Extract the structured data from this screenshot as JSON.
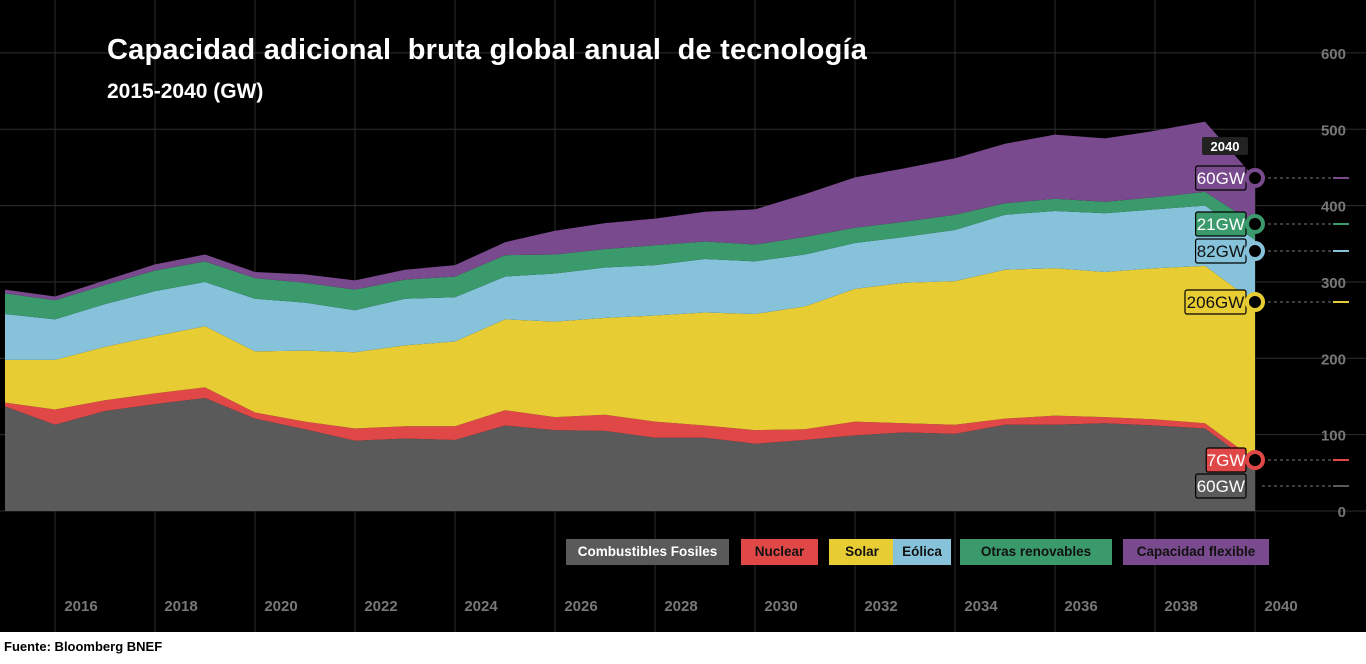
{
  "title": "Capacidad adicional  bruta global anual  de tecnología",
  "subtitle": "2015-2040 (GW)",
  "source": "Fuente: Bloomberg BNEF",
  "colors": {
    "background": "#000000",
    "grid": "#2e2e2e",
    "axis_text": "#777777"
  },
  "legend": {
    "items": [
      {
        "label": "Combustibles Fosiles",
        "color": "#5a5a5a"
      },
      {
        "label": "Nuclear",
        "color": "#e04848"
      },
      {
        "label": "Solar",
        "color": "#e8cc33"
      },
      {
        "label": "Eólica",
        "color": "#86c3db"
      },
      {
        "label": "Otras renovables",
        "color": "#3a9a6c"
      },
      {
        "label": "Capacidad flexible",
        "color": "#7a4a8e"
      }
    ]
  },
  "end_labels": {
    "year": "2040",
    "flexible": "60GW",
    "other_renewables": "21GW",
    "wind": "82GW",
    "solar": "206GW",
    "nuclear": "7GW",
    "fossil": "60GW"
  },
  "chart_data": {
    "type": "area",
    "stacked": true,
    "title": "Capacidad adicional  bruta global anual  de tecnología",
    "subtitle": "2015-2040 (GW)",
    "xlabel": "",
    "ylabel": "",
    "x": [
      2015,
      2016,
      2017,
      2018,
      2019,
      2020,
      2021,
      2022,
      2023,
      2024,
      2025,
      2026,
      2027,
      2028,
      2029,
      2030,
      2031,
      2032,
      2033,
      2034,
      2035,
      2036,
      2037,
      2038,
      2039,
      2040
    ],
    "x_ticks": [
      "2016",
      "2018",
      "2020",
      "2022",
      "2024",
      "2026",
      "2028",
      "2030",
      "2032",
      "2034",
      "2036",
      "2038",
      "2040"
    ],
    "y_ticks": [
      "0",
      "100",
      "200",
      "300",
      "400",
      "500",
      "600"
    ],
    "ylim": [
      0,
      600
    ],
    "y_axis_side": "right",
    "grid": true,
    "legend_position": "bottom-right",
    "series": [
      {
        "name": "Combustibles Fosiles",
        "color": "#5a5a5a",
        "values": [
          137,
          113,
          131,
          140,
          148,
          121,
          107,
          92,
          95,
          93,
          112,
          106,
          105,
          96,
          96,
          88,
          93,
          99,
          103,
          101,
          113,
          113,
          115,
          112,
          108,
          60
        ]
      },
      {
        "name": "Nuclear",
        "color": "#e04848",
        "values": [
          5,
          20,
          14,
          14,
          14,
          8,
          10,
          16,
          16,
          18,
          20,
          17,
          21,
          21,
          16,
          18,
          14,
          18,
          12,
          12,
          8,
          12,
          8,
          8,
          7,
          7
        ]
      },
      {
        "name": "Solar",
        "color": "#e8cc33",
        "values": [
          56,
          65,
          70,
          75,
          80,
          80,
          93,
          100,
          106,
          111,
          119,
          125,
          127,
          139,
          148,
          152,
          161,
          174,
          184,
          188,
          195,
          193,
          190,
          198,
          206,
          206
        ]
      },
      {
        "name": "Eólica",
        "color": "#86c3db",
        "values": [
          60,
          53,
          56,
          59,
          58,
          69,
          63,
          55,
          61,
          58,
          56,
          63,
          66,
          66,
          70,
          69,
          68,
          60,
          60,
          67,
          72,
          75,
          77,
          77,
          79,
          82
        ]
      },
      {
        "name": "Otras renovables",
        "color": "#3a9a6c",
        "values": [
          27,
          25,
          25,
          27,
          27,
          27,
          26,
          27,
          25,
          27,
          28,
          25,
          24,
          26,
          23,
          22,
          23,
          20,
          20,
          20,
          15,
          16,
          15,
          16,
          18,
          21
        ]
      },
      {
        "name": "Capacidad flexible",
        "color": "#7a4a8e",
        "values": [
          5,
          5,
          6,
          8,
          9,
          8,
          11,
          12,
          13,
          15,
          17,
          31,
          34,
          35,
          39,
          46,
          56,
          66,
          70,
          74,
          78,
          84,
          83,
          87,
          92,
          60
        ]
      }
    ]
  }
}
